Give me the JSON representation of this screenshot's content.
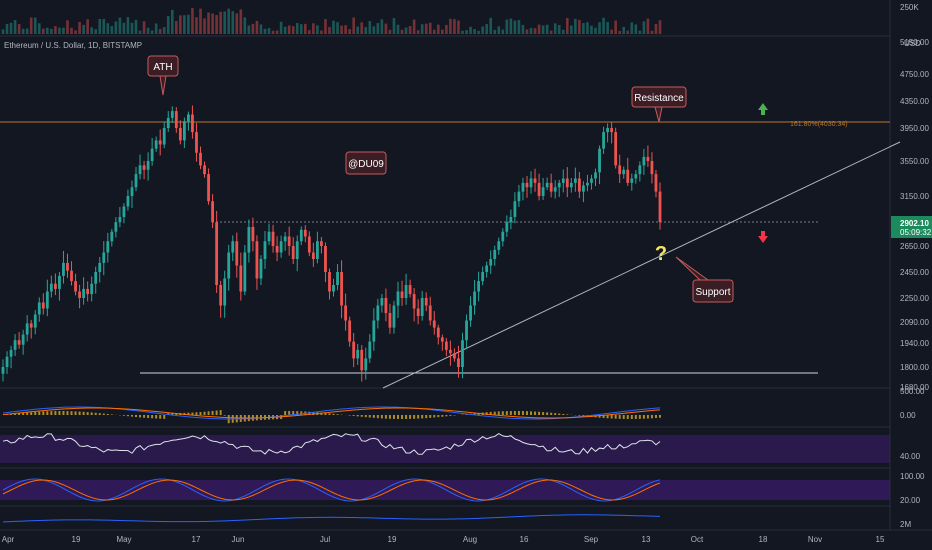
{
  "header": {
    "symbol_label": "Ethereum / U.S. Dollar, 1D, BITSTAMP",
    "currency": "USD",
    "volume_label": "250K"
  },
  "colors": {
    "background": "#131722",
    "up": "#26a69a",
    "down": "#ef5350",
    "fib_line": "#b8752c",
    "grid": "#1e222d",
    "bubble_fill": "#3b1e25",
    "bubble_border": "#c75a5a",
    "rsi_band": "#3c1d6e",
    "macd_line": "#2962ff",
    "signal_line": "#ff6d00",
    "histogram": "#c9a227",
    "current_price_bg": "#26a69a"
  },
  "price_axis": {
    "ticks": [
      "5150.00",
      "4750.00",
      "4350.00",
      "3950.00",
      "3550.00",
      "3150.00",
      "2650.00",
      "2450.00",
      "2250.00",
      "2090.00",
      "1940.00",
      "1800.00",
      "1680.00"
    ]
  },
  "current_price": {
    "value": "2902.10",
    "countdown": "05:09:32"
  },
  "time_axis": {
    "labels": [
      "Apr",
      "19",
      "May",
      "17",
      "Jun",
      "Jul",
      "19",
      "Aug",
      "16",
      "Sep",
      "13",
      "Oct",
      "18",
      "Nov",
      "15"
    ]
  },
  "annotations": {
    "ath": "ATH",
    "resistance": "Resistance",
    "author": "@DU09",
    "support": "Support",
    "question": "?",
    "fib_label": "161.80%(4030.34)"
  },
  "indicators": {
    "macd_ticks": [
      "500.00",
      "0.00"
    ],
    "rsi_ticks": [
      "40.00"
    ],
    "stoch_ticks": [
      "100.00",
      "20.00"
    ],
    "volume_ticks": [
      "2M"
    ]
  },
  "chart_data": {
    "type": "candlestick",
    "symbol": "Ethereum / U.S. Dollar",
    "interval": "1D",
    "exchange": "BITSTAMP",
    "date_range": [
      "Apr",
      "Sep 20"
    ],
    "close_series": [
      1800,
      1860,
      1900,
      1960,
      1930,
      2000,
      2080,
      2050,
      2140,
      2220,
      2180,
      2300,
      2360,
      2320,
      2420,
      2520,
      2460,
      2380,
      2300,
      2250,
      2320,
      2280,
      2360,
      2450,
      2520,
      2600,
      2700,
      2800,
      2900,
      2950,
      3050,
      3150,
      3250,
      3400,
      3500,
      3450,
      3550,
      3700,
      3800,
      3750,
      3950,
      4100,
      4200,
      3950,
      3800,
      4050,
      4150,
      3900,
      3650,
      3500,
      3400,
      3100,
      2900,
      2350,
      2200,
      2400,
      2600,
      2700,
      2500,
      2300,
      2600,
      2850,
      2700,
      2400,
      2550,
      2700,
      2800,
      2650,
      2600,
      2700,
      2750,
      2650,
      2550,
      2700,
      2820,
      2750,
      2600,
      2550,
      2700,
      2650,
      2450,
      2300,
      2350,
      2450,
      2200,
      2100,
      1950,
      1850,
      1900,
      1780,
      1850,
      1950,
      2100,
      2200,
      2250,
      2150,
      2050,
      2200,
      2300,
      2250,
      2350,
      2280,
      2180,
      2130,
      2250,
      2200,
      2100,
      2050,
      1980,
      1950,
      1900,
      1880,
      1850,
      1800,
      1960,
      2100,
      2200,
      2300,
      2380,
      2450,
      2500,
      2550,
      2620,
      2700,
      2800,
      2900,
      2950,
      3100,
      3200,
      3300,
      3250,
      3350,
      3300,
      3150,
      3250,
      3300,
      3200,
      3250,
      3300,
      3350,
      3250,
      3300,
      3350,
      3200,
      3270,
      3300,
      3350,
      3420,
      3700,
      3900,
      3950,
      3900,
      3500,
      3400,
      3450,
      3300,
      3350,
      3400,
      3500,
      3600,
      3550,
      3400,
      3200,
      2902
    ],
    "levels": {
      "resistance_fib_161_8": 4030.34,
      "horizontal_support": 1720,
      "dotted_level": 2902.1
    },
    "ath_approx": 4380
  }
}
